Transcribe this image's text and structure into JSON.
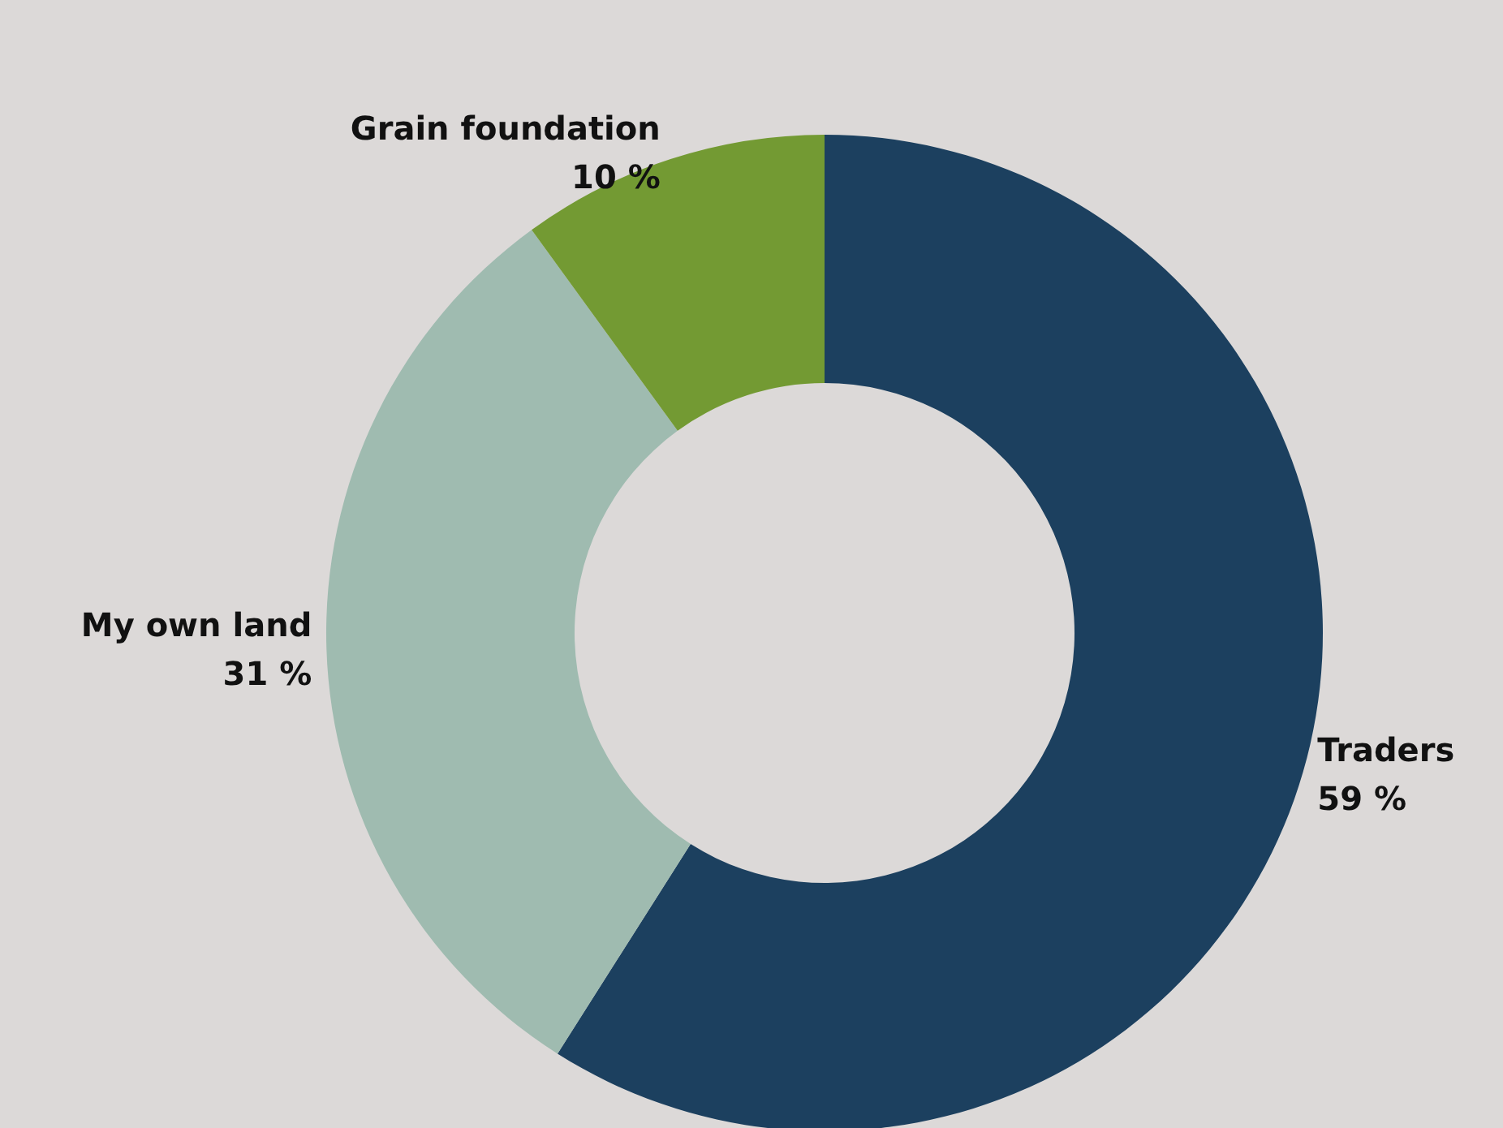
{
  "chart_data": {
    "type": "donut",
    "categories": [
      "Traders",
      "My own land",
      "Grain foundation"
    ],
    "values": [
      59,
      31,
      10
    ],
    "value_labels": [
      "59 %",
      "31 %",
      "10 %"
    ],
    "colors": [
      "#1c405f",
      "#9fbbb0",
      "#739a33"
    ],
    "legend": false
  }
}
